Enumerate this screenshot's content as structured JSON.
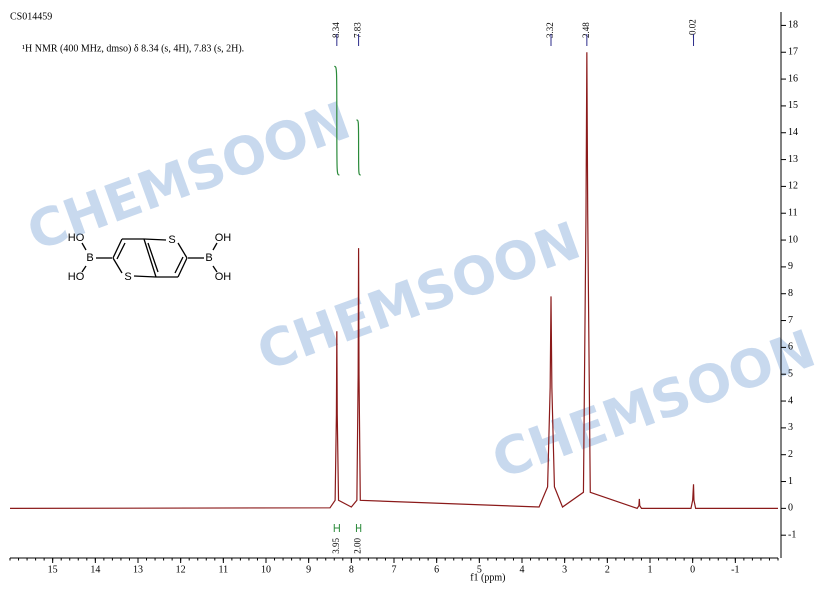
{
  "chart_data": {
    "type": "line",
    "title": "CS014459",
    "subtitle": "¹H NMR (400 MHz, dmso) δ 8.34 (s, 4H), 7.83 (s, 2H).",
    "xlabel": "f1 (ppm)",
    "series": [
      {
        "color": "#8b1a1a",
        "x": [
          16,
          8.5,
          8.38,
          8.35,
          8.34,
          8.33,
          8.3,
          8.0,
          7.87,
          7.84,
          7.83,
          7.82,
          7.79,
          3.6,
          3.4,
          3.34,
          3.32,
          3.3,
          3.24,
          3.05,
          2.56,
          2.5,
          2.48,
          2.46,
          2.4,
          1.3,
          1.26,
          1.25,
          1.24,
          1.2,
          0.04,
          0,
          -0.02,
          -0.03,
          -0.07,
          -2
        ],
        "values": [
          0,
          0.02,
          0.3,
          3.5,
          6.6,
          3.5,
          0.3,
          0.05,
          0.3,
          5,
          9.7,
          5,
          0.3,
          0.05,
          0.8,
          4.5,
          7.9,
          4.5,
          0.8,
          0.05,
          0.6,
          11,
          17,
          11,
          0.6,
          0,
          0.1,
          0.35,
          0.1,
          0,
          0,
          0.3,
          0.9,
          0.3,
          0,
          0
        ]
      }
    ],
    "peak_labels": [
      8.34,
      7.83,
      3.32,
      2.48,
      -0.02
    ],
    "integrals": {
      "ranges": [
        [
          8.4,
          8.28
        ],
        [
          7.88,
          7.78
        ]
      ],
      "values": [
        3.95,
        2
      ],
      "value_labels": [
        "3.95",
        "2.00"
      ],
      "color": "#2a8a3a"
    },
    "xlim": [
      16,
      -2
    ],
    "xticks": [
      15,
      14,
      13,
      12,
      11,
      10,
      9,
      8,
      7,
      6,
      5,
      4,
      3,
      2,
      1,
      0,
      -1
    ],
    "ylim": [
      -1.85,
      18.5
    ],
    "yticks": [
      -1,
      0,
      1,
      2,
      3,
      4,
      5,
      6,
      7,
      8,
      9,
      10,
      11,
      12,
      13,
      14,
      15,
      16,
      17,
      18
    ],
    "watermarks": [
      "CHEMSOON",
      "CHEMSOON",
      "CHEMSOON"
    ]
  },
  "structure_labels": [
    "HO",
    "HO",
    "B",
    "S",
    "S",
    "B",
    "OH",
    "OH"
  ]
}
